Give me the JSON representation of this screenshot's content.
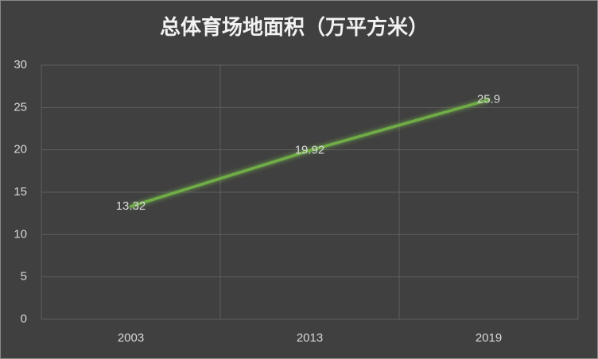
{
  "chart_data": {
    "type": "line",
    "title": "总体育场地面积（万平方米）",
    "categories": [
      "2003",
      "2013",
      "2019"
    ],
    "values": [
      13.32,
      19.92,
      25.9
    ],
    "color": "#70ad47",
    "ylim": [
      0,
      30
    ],
    "yticks": [
      0,
      5,
      10,
      15,
      20,
      25,
      30
    ],
    "grid": true
  }
}
